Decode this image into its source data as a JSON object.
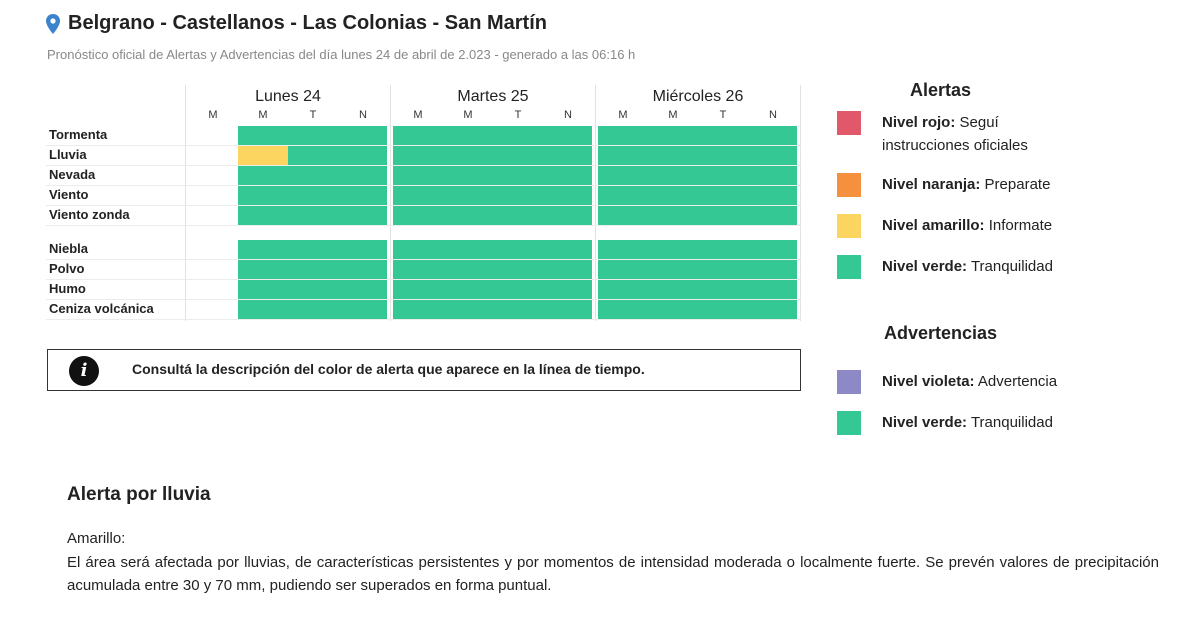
{
  "header": {
    "title": "Belgrano - Castellanos - Las Colonias - San Martín",
    "subtitle": "Pronóstico oficial de Alertas y Advertencias del día lunes 24 de abril de 2.023 - generado a las 06:16 h"
  },
  "timeline": {
    "days": [
      {
        "name": "Lunes 24",
        "periods": [
          "M",
          "M",
          "T",
          "N"
        ]
      },
      {
        "name": "Martes 25",
        "periods": [
          "M",
          "M",
          "T",
          "N"
        ]
      },
      {
        "name": "Miércoles 26",
        "periods": [
          "M",
          "M",
          "T",
          "N"
        ]
      }
    ],
    "rows": [
      {
        "label": "Tormenta",
        "levels": [
          "none",
          "verde",
          "verde",
          "verde",
          "verde",
          "verde",
          "verde",
          "verde",
          "verde",
          "verde",
          "verde",
          "verde"
        ]
      },
      {
        "label": "Lluvia",
        "levels": [
          "none",
          "amarillo",
          "verde",
          "verde",
          "verde",
          "verde",
          "verde",
          "verde",
          "verde",
          "verde",
          "verde",
          "verde"
        ]
      },
      {
        "label": "Nevada",
        "levels": [
          "none",
          "verde",
          "verde",
          "verde",
          "verde",
          "verde",
          "verde",
          "verde",
          "verde",
          "verde",
          "verde",
          "verde"
        ]
      },
      {
        "label": "Viento",
        "levels": [
          "none",
          "verde",
          "verde",
          "verde",
          "verde",
          "verde",
          "verde",
          "verde",
          "verde",
          "verde",
          "verde",
          "verde"
        ]
      },
      {
        "label": "Viento zonda",
        "levels": [
          "none",
          "verde",
          "verde",
          "verde",
          "verde",
          "verde",
          "verde",
          "verde",
          "verde",
          "verde",
          "verde",
          "verde"
        ]
      },
      {
        "label": "Niebla",
        "levels": [
          "none",
          "verde",
          "verde",
          "verde",
          "verde",
          "verde",
          "verde",
          "verde",
          "verde",
          "verde",
          "verde",
          "verde"
        ]
      },
      {
        "label": "Polvo",
        "levels": [
          "none",
          "verde",
          "verde",
          "verde",
          "verde",
          "verde",
          "verde",
          "verde",
          "verde",
          "verde",
          "verde",
          "verde"
        ]
      },
      {
        "label": "Humo",
        "levels": [
          "none",
          "verde",
          "verde",
          "verde",
          "verde",
          "verde",
          "verde",
          "verde",
          "verde",
          "verde",
          "verde",
          "verde"
        ]
      },
      {
        "label": "Ceniza volcánica",
        "levels": [
          "none",
          "verde",
          "verde",
          "verde",
          "verde",
          "verde",
          "verde",
          "verde",
          "verde",
          "verde",
          "verde",
          "verde"
        ]
      }
    ]
  },
  "info": {
    "icon": "info-icon",
    "icon_glyph": "i",
    "text": "Consultá la descripción del color de alerta que aparece en la línea de tiempo."
  },
  "legend": {
    "alertas_heading": "Alertas",
    "alertas": [
      {
        "level": "Nivel rojo:",
        "desc": " Seguí instrucciones oficiales",
        "color": "#e0586a"
      },
      {
        "level": "Nivel naranja:",
        "desc": " Preparate",
        "color": "#f5913e"
      },
      {
        "level": "Nivel amarillo:",
        "desc": " Informate",
        "color": "#fcd561"
      },
      {
        "level": "Nivel verde:",
        "desc": " Tranquilidad",
        "color": "#34c994"
      }
    ],
    "advertencias_heading": "Advertencias",
    "advertencias": [
      {
        "level": "Nivel violeta:",
        "desc": " Advertencia",
        "color": "#8d89c6"
      },
      {
        "level": "Nivel verde:",
        "desc": " Tranquilidad",
        "color": "#34c994"
      }
    ]
  },
  "colors": {
    "verde": "#34c994",
    "amarillo": "#fcd561",
    "pin": "#3d82cc"
  },
  "alert": {
    "title": "Alerta por lluvia",
    "level": "Amarillo:",
    "description": "El área será afectada por lluvias, de características persistentes y por momentos de intensidad moderada o localmente fuerte. Se prevén valores de precipitación acumulada entre 30 y 70 mm, pudiendo ser superados en forma puntual."
  }
}
